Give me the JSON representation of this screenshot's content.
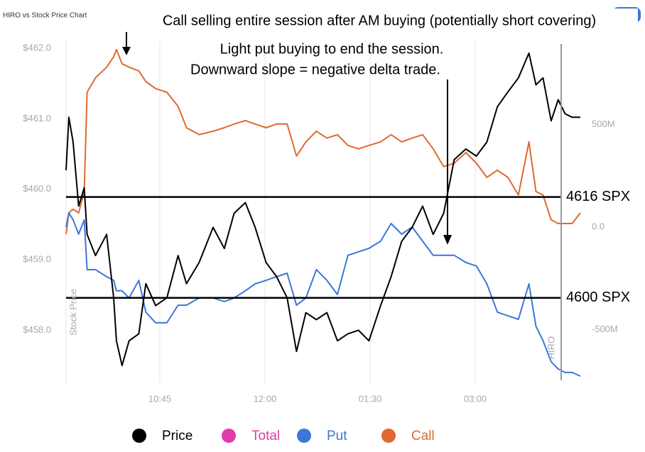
{
  "chart_data": {
    "type": "line",
    "title": "HIRO vs Stock Price Chart",
    "annotations": [
      "Call selling entire session after AM buying (potentially short covering)",
      "Light put buying to end the session.",
      "Downward slope = negative delta trade."
    ],
    "ylabel": "Stock Price",
    "y2label": "HIRO",
    "x": [
      578,
      580,
      583,
      587,
      591,
      593,
      599,
      607,
      612,
      614,
      618,
      623,
      630,
      635,
      642,
      650,
      658,
      664,
      673,
      683,
      691,
      698,
      706,
      713,
      721,
      730,
      739,
      747,
      755,
      764,
      773,
      782,
      791,
      800,
      809,
      819,
      828,
      837,
      846,
      855,
      864,
      873,
      882,
      892,
      901,
      910,
      919,
      928,
      937,
      946,
      952,
      958,
      965,
      971,
      977,
      983,
      990
    ],
    "xlim": [
      578,
      990
    ],
    "xticks": [
      {
        "value": 645,
        "label": "10:45"
      },
      {
        "value": 720,
        "label": "12:00"
      },
      {
        "value": 810,
        "label": "01:30"
      },
      {
        "value": 900,
        "label": "03:00"
      }
    ],
    "ylim": [
      457.3,
      462.1
    ],
    "yticks": [
      {
        "value": 458,
        "label": "$458.0"
      },
      {
        "value": 459,
        "label": "$459.0"
      },
      {
        "value": 460,
        "label": "$460.0"
      },
      {
        "value": 461,
        "label": "$461.0"
      },
      {
        "value": 462,
        "label": "$462.0"
      }
    ],
    "y2lim": [
      -744,
      906
    ],
    "y2ticks": [
      {
        "value": -500,
        "label": "-500M"
      },
      {
        "value": 0,
        "label": "0.0"
      },
      {
        "value": 500,
        "label": "500M"
      }
    ],
    "hlines": [
      {
        "label": "4616 SPX",
        "value": 459.89
      },
      {
        "label": "4600 SPX",
        "value": 458.46
      }
    ],
    "series": [
      {
        "name": "Price",
        "color": "#000000",
        "axis": "y",
        "values": [
          460.27,
          461.02,
          460.67,
          459.76,
          460.02,
          459.36,
          459.06,
          459.36,
          458.46,
          457.85,
          457.5,
          457.85,
          457.95,
          458.66,
          458.35,
          458.46,
          459.06,
          458.66,
          458.96,
          459.46,
          459.16,
          459.66,
          459.81,
          459.46,
          458.96,
          458.76,
          458.46,
          457.7,
          458.25,
          458.15,
          458.25,
          457.85,
          457.95,
          458.0,
          457.85,
          458.35,
          458.76,
          459.26,
          459.46,
          459.76,
          459.36,
          459.66,
          460.42,
          460.57,
          460.47,
          460.67,
          461.17,
          461.38,
          461.58,
          461.93,
          461.48,
          461.58,
          460.97,
          461.27,
          461.07,
          461.02,
          461.02
        ]
      },
      {
        "name": "Total",
        "color": "#e23aa8",
        "axis": "y2",
        "values": [
          null,
          null,
          null,
          null,
          null,
          null,
          null,
          null,
          null,
          null,
          null,
          null,
          null,
          null,
          null,
          null,
          null,
          null,
          null,
          null,
          null,
          null,
          null,
          null,
          null,
          null,
          null,
          null,
          null,
          null,
          null,
          null,
          null,
          null,
          null,
          null,
          null,
          null,
          null,
          null,
          null,
          null,
          null,
          null,
          null,
          null,
          null,
          null,
          null,
          null,
          null,
          null,
          null,
          null,
          null,
          null,
          null
        ]
      },
      {
        "name": "Put",
        "color": "#3b78d8",
        "axis": "y2",
        "values": [
          0,
          69,
          35,
          -35,
          35,
          -208,
          -208,
          -242,
          -260,
          -311,
          -311,
          -346,
          -260,
          -415,
          -467,
          -467,
          -381,
          -381,
          -346,
          -346,
          -363,
          -346,
          -311,
          -277,
          -260,
          -242,
          -225,
          -381,
          -346,
          -208,
          -260,
          -329,
          -138,
          -121,
          -104,
          -69,
          17,
          -35,
          0,
          -69,
          -138,
          -138,
          -138,
          -173,
          -190,
          -277,
          -415,
          -433,
          -450,
          -277,
          -484,
          -554,
          -657,
          -692,
          -709,
          -709,
          -727
        ]
      },
      {
        "name": "Call",
        "color": "#e0692f",
        "axis": "y2",
        "values": [
          -35,
          69,
          87,
          69,
          173,
          657,
          727,
          779,
          830,
          865,
          796,
          779,
          761,
          709,
          675,
          657,
          588,
          484,
          450,
          467,
          484,
          502,
          519,
          502,
          484,
          502,
          502,
          346,
          415,
          467,
          433,
          450,
          398,
          381,
          398,
          415,
          450,
          415,
          433,
          450,
          381,
          294,
          311,
          363,
          311,
          242,
          277,
          242,
          156,
          415,
          173,
          156,
          35,
          17,
          17,
          17,
          69
        ]
      }
    ]
  }
}
